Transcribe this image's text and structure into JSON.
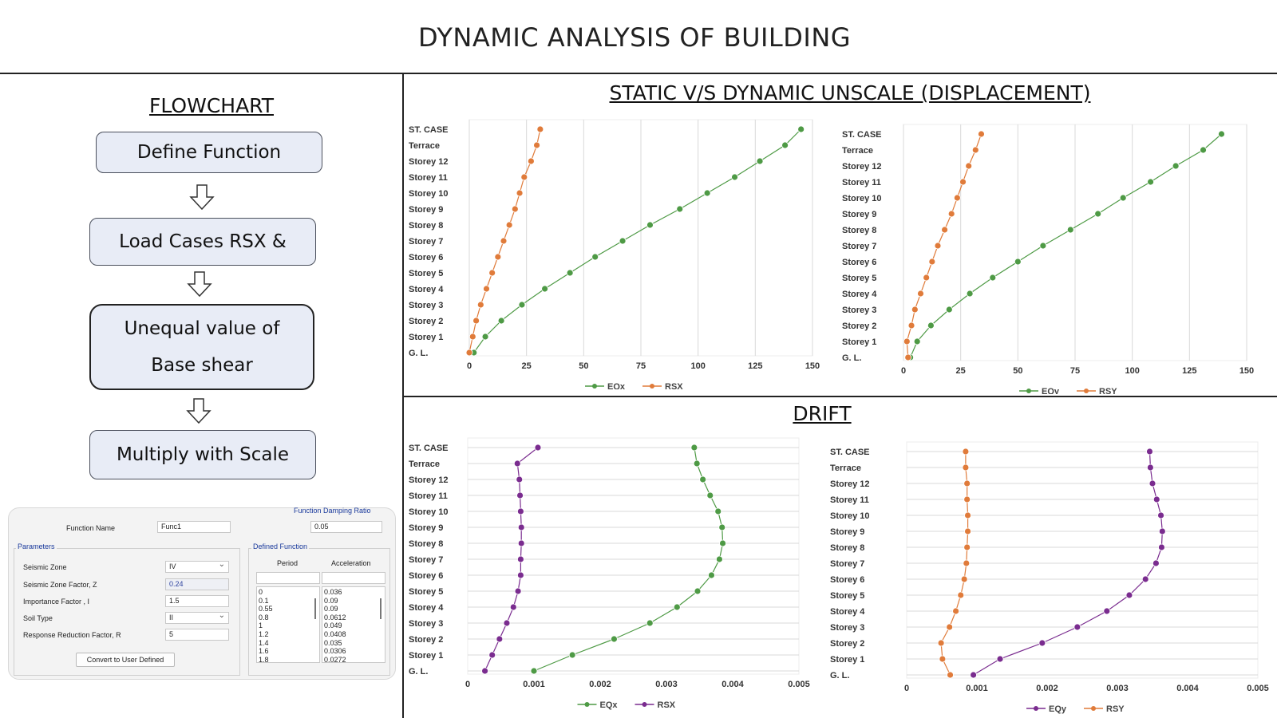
{
  "page_title": "DYNAMIC ANALYSIS OF BUILDING",
  "flowchart": {
    "title": "FLOWCHART",
    "steps": [
      "Define Function",
      "Load Cases RSX &",
      "Unequal value of",
      "Base shear",
      "Multiply with Scale"
    ]
  },
  "dialog": {
    "function_name_label": "Function Name",
    "function_name_value": "Func1",
    "damping_label": "Function Damping Ratio",
    "damping_value": "0.05",
    "parameters_label": "Parameters",
    "params": [
      {
        "label": "Seismic Zone",
        "value": "IV"
      },
      {
        "label": "Seismic Zone Factor, Z",
        "value": "0.24"
      },
      {
        "label": "Importance Factor , I",
        "value": "1.5"
      },
      {
        "label": "Soil Type",
        "value": "II"
      },
      {
        "label": "Response Reduction Factor, R",
        "value": "5"
      }
    ],
    "convert_button": "Convert to User Defined",
    "defined_function_label": "Defined Function",
    "period_header": "Period",
    "acceleration_header": "Acceleration",
    "periods": [
      "0",
      "0.1",
      "0.55",
      "0.8",
      "1",
      "1.2",
      "1.4",
      "1.6",
      "1.8"
    ],
    "accelerations": [
      "0.036",
      "0.09",
      "0.09",
      "0.0612",
      "0.049",
      "0.0408",
      "0.035",
      "0.0306",
      "0.0272"
    ]
  },
  "sections": {
    "displacement_title": "STATIC V/S DYNAMIC UNSCALE (DISPLACEMENT)",
    "drift_title": "DRIFT"
  },
  "colors": {
    "green": "#4e9a45",
    "orange": "#e07b3a",
    "purple": "#7a2c8f",
    "grid": "#d9d9d9"
  },
  "chart_data": [
    {
      "type": "line",
      "orientation": "horizontal",
      "categories": [
        "G. L.",
        "Storey 1",
        "Storey 2",
        "Storey 3",
        "Storey 4",
        "Storey 5",
        "Storey 6",
        "Storey 7",
        "Storey 8",
        "Storey 9",
        "Storey 10",
        "Storey 11",
        "Storey 12",
        "Terrace",
        "ST. CASE"
      ],
      "xlim": [
        0,
        150
      ],
      "xticks": [
        "0",
        "25",
        "50",
        "75",
        "100",
        "125",
        "150"
      ],
      "grid": "vertical",
      "legend": "bottom",
      "series": [
        {
          "name": "EQx",
          "color": "#4e9a45",
          "values": [
            2,
            7,
            14,
            23,
            33,
            44,
            55,
            67,
            79,
            92,
            104,
            116,
            127,
            138,
            145
          ]
        },
        {
          "name": "RSX",
          "color": "#e07b3a",
          "values": [
            0,
            1.5,
            3,
            5,
            7.5,
            10,
            12.5,
            15,
            17.5,
            20,
            22,
            24,
            27,
            29.5,
            31
          ]
        }
      ]
    },
    {
      "type": "line",
      "orientation": "horizontal",
      "categories": [
        "G. L.",
        "Storey 1",
        "Storey 2",
        "Storey 3",
        "Storey 4",
        "Storey 5",
        "Storey 6",
        "Storey 7",
        "Storey 8",
        "Storey 9",
        "Storey 10",
        "Storey 11",
        "Storey 12",
        "Terrace",
        "ST. CASE"
      ],
      "xlim": [
        0,
        150
      ],
      "xticks": [
        "0",
        "25",
        "50",
        "75",
        "100",
        "125",
        "150"
      ],
      "grid": "vertical",
      "legend": "bottom",
      "series": [
        {
          "name": "EQy",
          "color": "#4e9a45",
          "values": [
            3,
            6,
            12,
            20,
            29,
            39,
            50,
            61,
            73,
            85,
            96,
            108,
            119,
            131,
            139
          ]
        },
        {
          "name": "RSY",
          "color": "#e07b3a",
          "values": [
            2,
            1.5,
            3.5,
            5,
            7.5,
            10,
            12.5,
            15,
            18,
            21,
            23.5,
            26,
            28.5,
            31.5,
            34
          ]
        }
      ]
    },
    {
      "type": "line",
      "orientation": "horizontal",
      "categories": [
        "G. L.",
        "Storey 1",
        "Storey 2",
        "Storey 3",
        "Storey 4",
        "Storey 5",
        "Storey 6",
        "Storey 7",
        "Storey 8",
        "Storey 9",
        "Storey 10",
        "Storey 11",
        "Storey 12",
        "Terrace",
        "ST. CASE"
      ],
      "xlim": [
        0,
        0.005
      ],
      "xticks": [
        "0",
        "0.001",
        "0.002",
        "0.003",
        "0.004",
        "0.005"
      ],
      "grid": "horizontal",
      "legend": "bottom",
      "series": [
        {
          "name": "EQx",
          "color": "#4e9a45",
          "values": [
            0.001,
            0.00158,
            0.00221,
            0.00275,
            0.00316,
            0.00347,
            0.00368,
            0.0038,
            0.00385,
            0.00384,
            0.00378,
            0.00366,
            0.00355,
            0.00346,
            0.00342
          ]
        },
        {
          "name": "RSX",
          "color": "#7a2c8f",
          "values": [
            0.00026,
            0.00037,
            0.00048,
            0.00059,
            0.00069,
            0.00076,
            0.0008,
            0.0008,
            0.00081,
            0.00081,
            0.0008,
            0.00079,
            0.00078,
            0.00075,
            0.00106
          ]
        }
      ]
    },
    {
      "type": "line",
      "orientation": "horizontal",
      "categories": [
        "G. L.",
        "Storey 1",
        "Storey 2",
        "Storey 3",
        "Storey 4",
        "Storey 5",
        "Storey 6",
        "Storey 7",
        "Storey 8",
        "Storey 9",
        "Storey 10",
        "Storey 11",
        "Storey 12",
        "Terrace",
        "ST. CASE"
      ],
      "xlim": [
        0,
        0.005
      ],
      "xticks": [
        "0",
        "0.001",
        "0.002",
        "0.003",
        "0.004",
        "0.005"
      ],
      "grid": "horizontal",
      "legend": "bottom",
      "series": [
        {
          "name": "EQy",
          "color": "#7a2c8f",
          "values": [
            0.00095,
            0.00133,
            0.00193,
            0.00243,
            0.00285,
            0.00317,
            0.0034,
            0.00355,
            0.00363,
            0.00364,
            0.00362,
            0.00356,
            0.0035,
            0.00347,
            0.00346
          ]
        },
        {
          "name": "RSY",
          "color": "#e07b3a",
          "values": [
            0.00062,
            0.00051,
            0.00049,
            0.00061,
            0.0007,
            0.00077,
            0.00082,
            0.00085,
            0.00086,
            0.00087,
            0.00087,
            0.00086,
            0.00086,
            0.00084,
            0.00084
          ]
        }
      ]
    }
  ]
}
